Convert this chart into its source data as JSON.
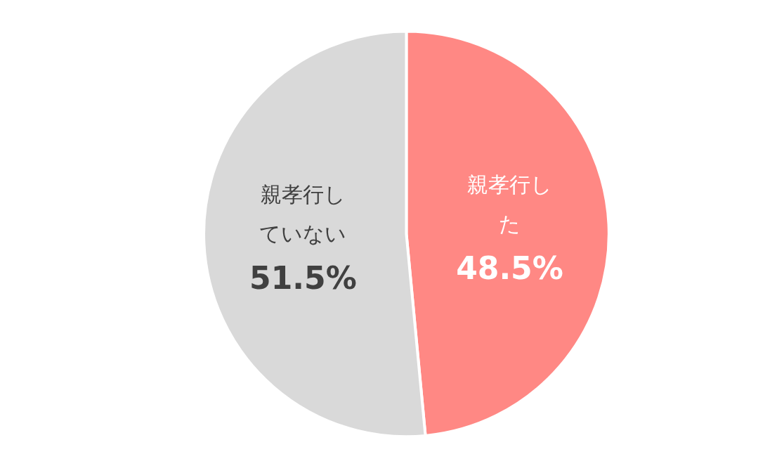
{
  "chart_data": {
    "type": "pie",
    "categories": [
      "親孝行した",
      "親孝行していない"
    ],
    "values": [
      48.5,
      51.5
    ],
    "value_labels": [
      "48.5%",
      "51.5%"
    ],
    "colors": [
      "#ff8884",
      "#d9d9d9"
    ],
    "legend": false
  }
}
